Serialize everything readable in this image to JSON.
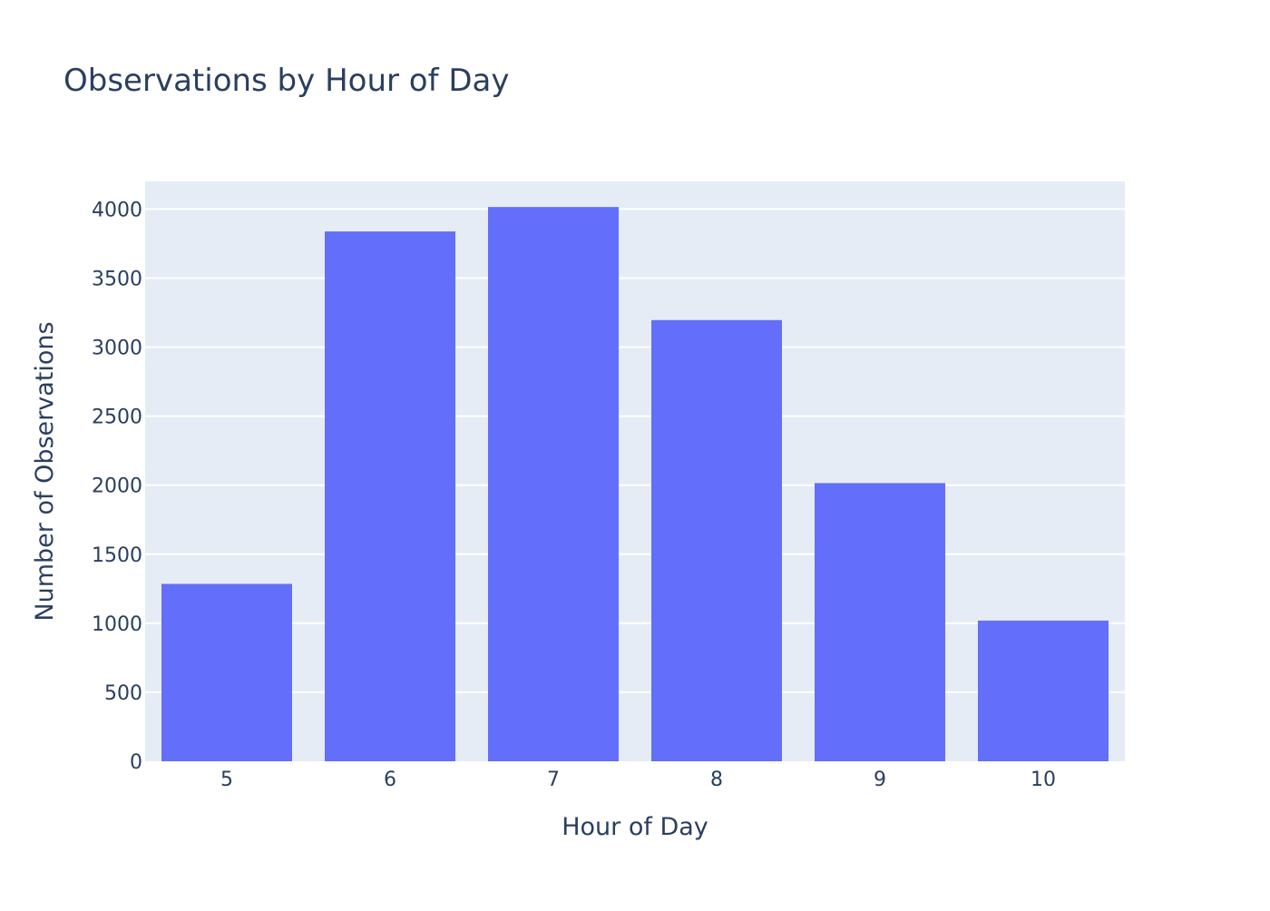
{
  "chart_data": {
    "type": "bar",
    "title": "Observations by Hour of Day",
    "xlabel": "Hour of Day",
    "ylabel": "Number of Observations",
    "categories": [
      "5",
      "6",
      "7",
      "8",
      "9",
      "10"
    ],
    "values": [
      1285,
      3838,
      4015,
      3196,
      2015,
      1019
    ],
    "ylim": [
      0,
      4200
    ],
    "yticks": [
      0,
      500,
      1000,
      1500,
      2000,
      2500,
      3000,
      3500,
      4000
    ],
    "ytick_labels": [
      "0",
      "500",
      "1000",
      "1500",
      "2000",
      "2500",
      "3000",
      "3500",
      "4000"
    ],
    "grid": true,
    "legend": "none",
    "colors": {
      "bar": "#636efa",
      "plot_background": "#e5ecf6",
      "paper_background": "#ffffff",
      "gridline": "#ffffff",
      "text": "#2a3f5f"
    }
  }
}
